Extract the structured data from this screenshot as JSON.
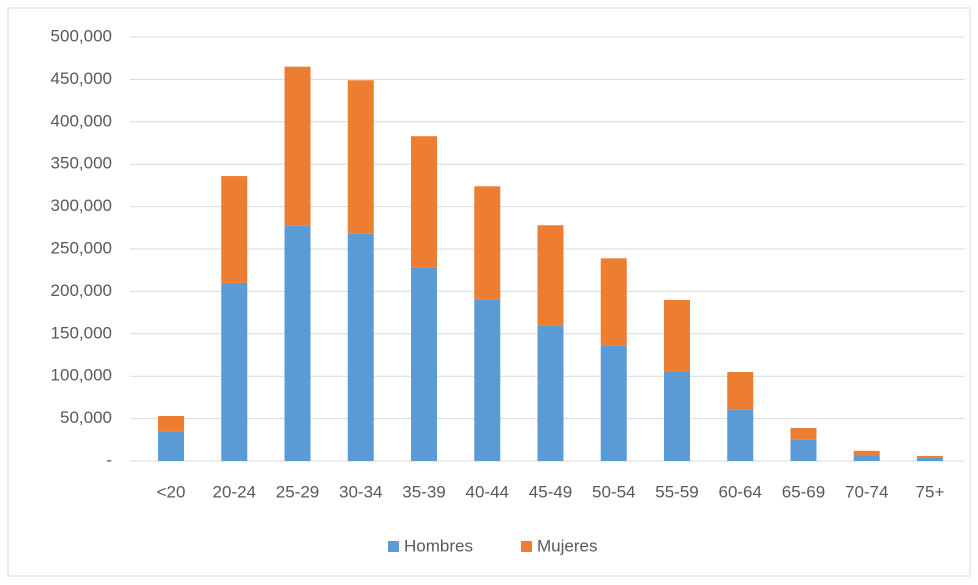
{
  "chart_data": {
    "type": "stacked-bar",
    "categories": [
      "<20",
      "20-24",
      "25-29",
      "30-34",
      "35-39",
      "40-44",
      "45-49",
      "50-54",
      "55-59",
      "60-64",
      "65-69",
      "70-74",
      "75+"
    ],
    "series": [
      {
        "name": "Hombres",
        "color": "#5b9bd5",
        "values": [
          35000,
          210000,
          278000,
          268000,
          228000,
          190000,
          160000,
          136000,
          106000,
          61000,
          25000,
          7000,
          4000
        ]
      },
      {
        "name": "Mujeres",
        "color": "#ed7d31",
        "values": [
          18000,
          126000,
          187000,
          181000,
          155000,
          134000,
          118000,
          103000,
          84000,
          44000,
          14000,
          5000,
          2000
        ]
      }
    ],
    "ylim": [
      0,
      500000
    ],
    "yticks": [
      {
        "value": 0,
        "label": "-"
      },
      {
        "value": 50000,
        "label": "50,000"
      },
      {
        "value": 100000,
        "label": "100,000"
      },
      {
        "value": 150000,
        "label": "150,000"
      },
      {
        "value": 200000,
        "label": "200,000"
      },
      {
        "value": 250000,
        "label": "250,000"
      },
      {
        "value": 300000,
        "label": "300,000"
      },
      {
        "value": 350000,
        "label": "350,000"
      },
      {
        "value": 400000,
        "label": "400,000"
      },
      {
        "value": 450000,
        "label": "450,000"
      },
      {
        "value": 500000,
        "label": "500,000"
      }
    ],
    "grid": true,
    "legend": "bottom"
  }
}
